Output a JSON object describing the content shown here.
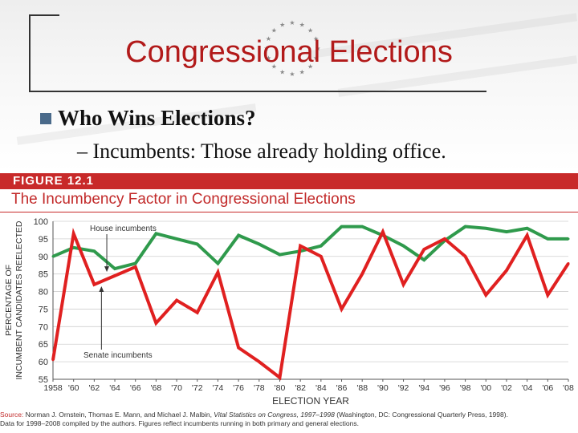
{
  "slide": {
    "title": "Congressional Elections",
    "bullet": "Who Wins Elections?",
    "sub_bullet": "– Incumbents: Those already holding office."
  },
  "figure": {
    "label": "FIGURE 12.1",
    "title": "The Incumbency Factor in Congressional Elections",
    "source_lead": "Source:",
    "source_pre": " Norman J. Ornstein, Thomas E. Mann, and Michael J. Malbin, ",
    "source_italic": "Vital Statistics on Congress, 1997–1998",
    "source_post": " (Washington, DC: Congressional Quarterly Press, 1998).",
    "source_line2": "Data for 1998–2008 compiled by the authors. Figures reflect incumbents running in both primary and general elections."
  },
  "chart_data": {
    "type": "line",
    "xlabel": "ELECTION YEAR",
    "ylabel": [
      "PERCENTAGE OF",
      "INCUMBENT CANDIDATES REELECTED"
    ],
    "ylim": [
      55,
      100
    ],
    "yticks": [
      55,
      60,
      65,
      70,
      75,
      80,
      85,
      90,
      95,
      100
    ],
    "x": [
      "1958",
      "'60",
      "'62",
      "'64",
      "'66",
      "'68",
      "'70",
      "'72",
      "'74",
      "'76",
      "'78",
      "'80",
      "'82",
      "'84",
      "'86",
      "'88",
      "'90",
      "'92",
      "'94",
      "'96",
      "'98",
      "'00",
      "'02",
      "'04",
      "'06",
      "'08"
    ],
    "series": [
      {
        "name": "House incumbents",
        "color": "#2f9a4c",
        "values": [
          90,
          92.5,
          91.5,
          86.5,
          88,
          96.5,
          95,
          93.5,
          88,
          96,
          93.5,
          90.5,
          91.5,
          93,
          98.5,
          98.5,
          96,
          93,
          89,
          94.5,
          98.5,
          98,
          97,
          98,
          95,
          95
        ]
      },
      {
        "name": "Senate incumbents",
        "color": "#e02020",
        "values": [
          60.5,
          96.5,
          82,
          84.5,
          87,
          71,
          77.5,
          74,
          85.5,
          64,
          60,
          55.5,
          93,
          90,
          75,
          85,
          97,
          82,
          92,
          95,
          90,
          79,
          86,
          96,
          79,
          88
        ]
      }
    ],
    "annotations": [
      "House incumbents",
      "Senate incumbents"
    ],
    "grid": "horizontal"
  }
}
